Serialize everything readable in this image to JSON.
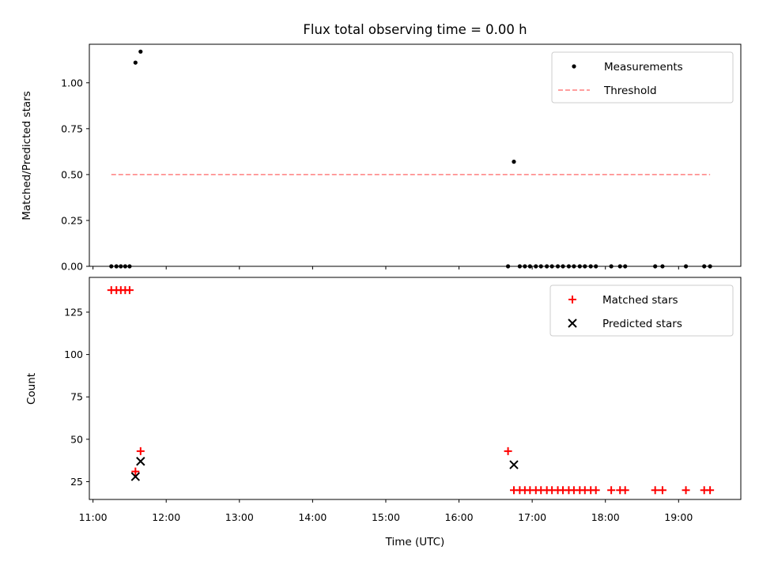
{
  "title": "Flux total observing time = 0.00 h",
  "chart_data": [
    {
      "type": "scatter",
      "ylabel": "Matched/Predicted stars",
      "xlim": [
        10.95,
        19.85
      ],
      "ylim": [
        0.0,
        1.21
      ],
      "yticks": [
        "0.00",
        "0.25",
        "0.50",
        "0.75",
        "1.00"
      ],
      "legend_position": "top-right",
      "series": [
        {
          "name": "Measurements",
          "color": "#000000",
          "marker": "dot",
          "x": [
            11.25,
            11.32,
            11.38,
            11.44,
            11.5,
            11.58,
            11.65,
            16.67,
            16.75,
            16.83,
            16.9,
            16.97,
            17.05,
            17.12,
            17.2,
            17.27,
            17.35,
            17.42,
            17.5,
            17.57,
            17.65,
            17.72,
            17.8,
            17.87,
            18.08,
            18.2,
            18.27,
            18.68,
            18.78,
            19.1,
            19.35,
            19.43
          ],
          "y": [
            0.0,
            0.0,
            0.0,
            0.0,
            0.0,
            1.11,
            1.17,
            0.0,
            0.57,
            0.0,
            0.0,
            0.0,
            0.0,
            0.0,
            0.0,
            0.0,
            0.0,
            0.0,
            0.0,
            0.0,
            0.0,
            0.0,
            0.0,
            0.0,
            0.0,
            0.0,
            0.0,
            0.0,
            0.0,
            0.0,
            0.0,
            0.0
          ]
        },
        {
          "name": "Threshold",
          "type": "line",
          "style": "dashed",
          "color": "#ff7f7f",
          "x": [
            11.25,
            19.43
          ],
          "y": [
            0.5,
            0.5
          ]
        }
      ]
    },
    {
      "type": "scatter",
      "xlabel": "Time (UTC)",
      "ylabel": "Count",
      "xlim": [
        10.95,
        19.85
      ],
      "ylim": [
        14.5,
        145.5
      ],
      "xticks": [
        "11:00",
        "12:00",
        "13:00",
        "14:00",
        "15:00",
        "16:00",
        "17:00",
        "18:00",
        "19:00"
      ],
      "yticks": [
        "25",
        "50",
        "75",
        "100",
        "125"
      ],
      "legend_position": "top-right",
      "series": [
        {
          "name": "Matched stars",
          "color": "#ff0000",
          "marker": "plus",
          "x": [
            11.25,
            11.32,
            11.38,
            11.44,
            11.5,
            11.58,
            11.65,
            16.67,
            16.75,
            16.83,
            16.9,
            16.97,
            17.05,
            17.12,
            17.2,
            17.27,
            17.35,
            17.42,
            17.5,
            17.57,
            17.65,
            17.72,
            17.8,
            17.87,
            18.08,
            18.2,
            18.27,
            18.68,
            18.78,
            19.1,
            19.35,
            19.43
          ],
          "y": [
            138,
            138,
            138,
            138,
            138,
            31,
            43,
            43,
            20,
            20,
            20,
            20,
            20,
            20,
            20,
            20,
            20,
            20,
            20,
            20,
            20,
            20,
            20,
            20,
            20,
            20,
            20,
            20,
            20,
            20,
            20,
            20
          ]
        },
        {
          "name": "Predicted stars",
          "color": "#000000",
          "marker": "x",
          "x": [
            11.58,
            11.65,
            16.75
          ],
          "y": [
            28,
            37,
            35
          ]
        }
      ]
    }
  ]
}
